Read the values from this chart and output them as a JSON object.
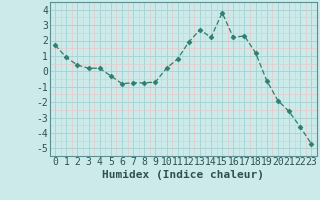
{
  "x": [
    0,
    1,
    2,
    3,
    4,
    5,
    6,
    7,
    8,
    9,
    10,
    11,
    12,
    13,
    14,
    15,
    16,
    17,
    18,
    19,
    20,
    21,
    22,
    23
  ],
  "y": [
    1.7,
    0.9,
    0.4,
    0.2,
    0.2,
    -0.3,
    -0.8,
    -0.75,
    -0.75,
    -0.7,
    0.2,
    0.8,
    1.9,
    2.7,
    2.2,
    3.8,
    2.2,
    2.3,
    1.2,
    -0.6,
    -1.9,
    -2.6,
    -3.6,
    -4.7
  ],
  "bg_color": "#cceaea",
  "grid_major_color": "#aad4d4",
  "grid_minor_color": "#bbdede",
  "line_color": "#2e7d6e",
  "marker_color": "#2e7d6e",
  "xlabel": "Humidex (Indice chaleur)",
  "ylim": [
    -5.5,
    4.5
  ],
  "yticks": [
    -5,
    -4,
    -3,
    -2,
    -1,
    0,
    1,
    2,
    3,
    4
  ],
  "xlim": [
    -0.5,
    23.5
  ],
  "xticks": [
    0,
    1,
    2,
    3,
    4,
    5,
    6,
    7,
    8,
    9,
    10,
    11,
    12,
    13,
    14,
    15,
    16,
    17,
    18,
    19,
    20,
    21,
    22,
    23
  ],
  "tick_font_size": 7,
  "label_font_size": 8
}
